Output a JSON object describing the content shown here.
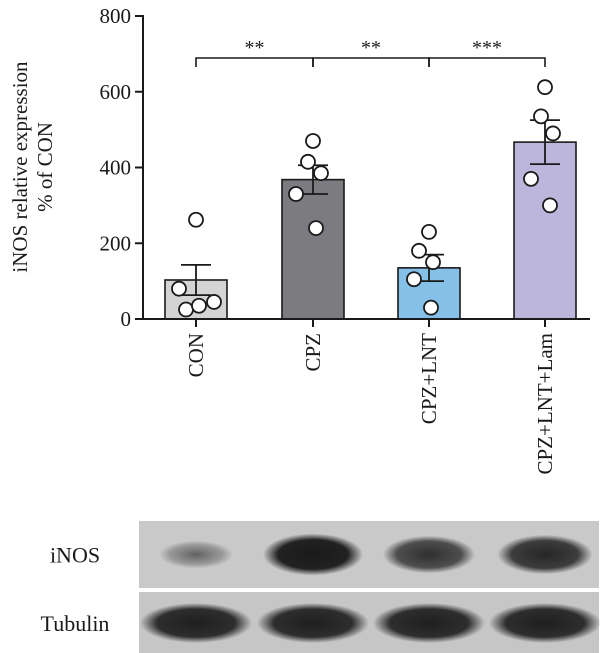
{
  "chart_data": {
    "type": "bar",
    "ylabel_line1": "iNOS relative expression",
    "ylabel_line2": "% of CON",
    "ylim": [
      0,
      800
    ],
    "yticks": [
      0,
      200,
      400,
      600,
      800
    ],
    "categories": [
      "CON",
      "CPZ",
      "CPZ+LNT",
      "CPZ+LNT+Lam"
    ],
    "values": [
      103,
      368,
      135,
      467
    ],
    "sem": [
      40,
      38,
      35,
      58
    ],
    "colors": [
      "#d4d4d4",
      "#7b7b80",
      "#85c0e8",
      "#bcb6dc"
    ],
    "points": [
      [
        262,
        80,
        45,
        25,
        35
      ],
      [
        470,
        415,
        385,
        330,
        240
      ],
      [
        230,
        180,
        150,
        105,
        30
      ],
      [
        612,
        535,
        490,
        370,
        300
      ]
    ],
    "significance": [
      {
        "from": 0,
        "to": 1,
        "label": "**"
      },
      {
        "from": 1,
        "to": 2,
        "label": "**"
      },
      {
        "from": 2,
        "to": 3,
        "label": "***"
      }
    ]
  },
  "blot": {
    "rows": [
      {
        "label": "iNOS",
        "intensities": [
          0.35,
          1.0,
          0.8,
          0.88
        ]
      },
      {
        "label": "Tubulin",
        "intensities": [
          0.95,
          0.95,
          0.95,
          0.95
        ]
      }
    ]
  }
}
